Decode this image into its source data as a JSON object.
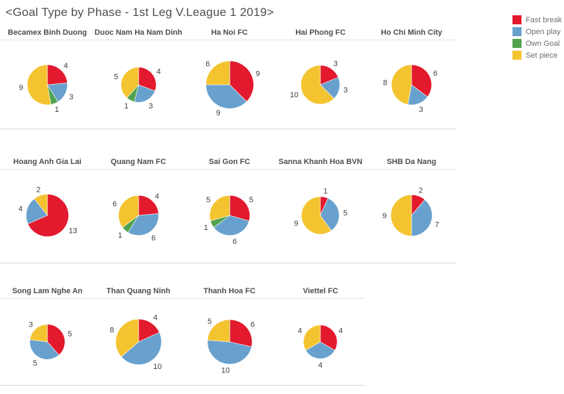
{
  "title": "<Goal Type by Phase - 1st Leg V.League 1 2019>",
  "chart_data": {
    "type": "pie",
    "title": "<Goal Type by Phase - 1st Leg V.League 1 2019>",
    "categories": [
      "Fast break",
      "Open play",
      "Own Goal",
      "Set piece"
    ],
    "colors": [
      "#e3192d",
      "#68a1cd",
      "#51a34f",
      "#f4c430"
    ],
    "legend_position": "top-right",
    "size_encoding": "pie diameter proportional to sqrt of total goals",
    "grid": {
      "rows": 3,
      "cols_per_row": [
        5,
        5,
        4
      ]
    },
    "teams": [
      {
        "name": "Becamex Binh Duong",
        "values": [
          4,
          3,
          1,
          9
        ],
        "total": 17
      },
      {
        "name": "Duoc Nam Ha Nam Dinh",
        "values": [
          4,
          3,
          1,
          5
        ],
        "total": 13
      },
      {
        "name": "Ha Noi FC",
        "values": [
          9,
          9,
          0,
          6
        ],
        "total": 24
      },
      {
        "name": "Hai Phong FC",
        "values": [
          3,
          3,
          0,
          10
        ],
        "total": 16
      },
      {
        "name": "Ho Chi Minh City",
        "values": [
          6,
          3,
          0,
          8
        ],
        "total": 17
      },
      {
        "name": "Hoang Anh Gia Lai",
        "values": [
          13,
          4,
          0,
          2
        ],
        "total": 19
      },
      {
        "name": "Quang Nam FC",
        "values": [
          4,
          6,
          1,
          6
        ],
        "total": 17
      },
      {
        "name": "Sai Gon FC",
        "values": [
          5,
          6,
          1,
          5
        ],
        "total": 17
      },
      {
        "name": "Sanna Khanh Hoa BVN",
        "values": [
          1,
          5,
          0,
          9
        ],
        "total": 15
      },
      {
        "name": "SHB Da Nang",
        "values": [
          2,
          7,
          0,
          9
        ],
        "total": 18
      },
      {
        "name": "Song Lam Nghe An",
        "values": [
          5,
          5,
          0,
          3
        ],
        "total": 13
      },
      {
        "name": "Than Quang Ninh",
        "values": [
          4,
          10,
          0,
          8
        ],
        "total": 22
      },
      {
        "name": "Thanh Hoa FC",
        "values": [
          6,
          10,
          0,
          5
        ],
        "total": 21
      },
      {
        "name": "Viettel FC",
        "values": [
          4,
          4,
          0,
          4
        ],
        "total": 12
      }
    ]
  }
}
